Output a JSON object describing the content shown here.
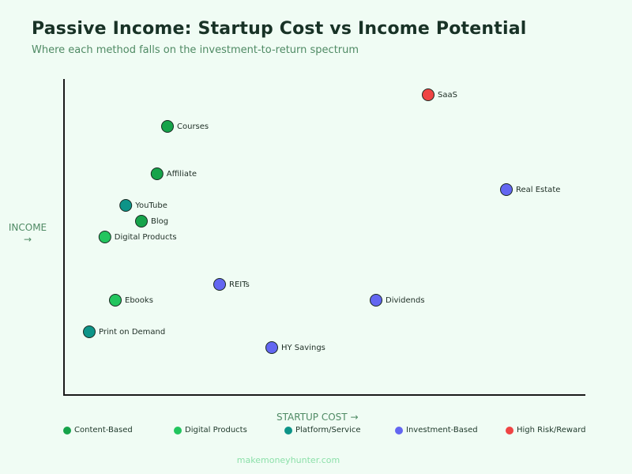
{
  "chart_data": {
    "type": "scatter",
    "title": "Passive Income: Startup Cost vs Income Potential",
    "subtitle": "Where each method falls on the investment-to-return spectrum",
    "xlabel": "STARTUP COST →",
    "ylabel": "INCOME →",
    "xlim": [
      0,
      100
    ],
    "ylim": [
      0,
      100
    ],
    "grid": false,
    "legend_position": "bottom",
    "categories": [
      {
        "name": "Content-Based",
        "color": "#16a34a"
      },
      {
        "name": "Digital Products",
        "color": "#22c55e"
      },
      {
        "name": "Platform/Service",
        "color": "#0d9488"
      },
      {
        "name": "Investment-Based",
        "color": "#6366f1"
      },
      {
        "name": "High Risk/Reward",
        "color": "#ef4444"
      }
    ],
    "points": [
      {
        "label": "SaaS",
        "x": 70,
        "y": 95,
        "category": "High Risk/Reward"
      },
      {
        "label": "Courses",
        "x": 20,
        "y": 85,
        "category": "Content-Based"
      },
      {
        "label": "Affiliate",
        "x": 18,
        "y": 70,
        "category": "Content-Based"
      },
      {
        "label": "Real Estate",
        "x": 85,
        "y": 65,
        "category": "Investment-Based"
      },
      {
        "label": "YouTube",
        "x": 12,
        "y": 60,
        "category": "Platform/Service"
      },
      {
        "label": "Blog",
        "x": 15,
        "y": 55,
        "category": "Content-Based"
      },
      {
        "label": "Digital Products",
        "x": 8,
        "y": 50,
        "category": "Digital Products"
      },
      {
        "label": "REITs",
        "x": 30,
        "y": 35,
        "category": "Investment-Based"
      },
      {
        "label": "Ebooks",
        "x": 10,
        "y": 30,
        "category": "Digital Products"
      },
      {
        "label": "Dividends",
        "x": 60,
        "y": 30,
        "category": "Investment-Based"
      },
      {
        "label": "Print on Demand",
        "x": 5,
        "y": 20,
        "category": "Platform/Service"
      },
      {
        "label": "HY Savings",
        "x": 40,
        "y": 15,
        "category": "Investment-Based"
      }
    ]
  },
  "footer": "makemoneyhunter.com"
}
